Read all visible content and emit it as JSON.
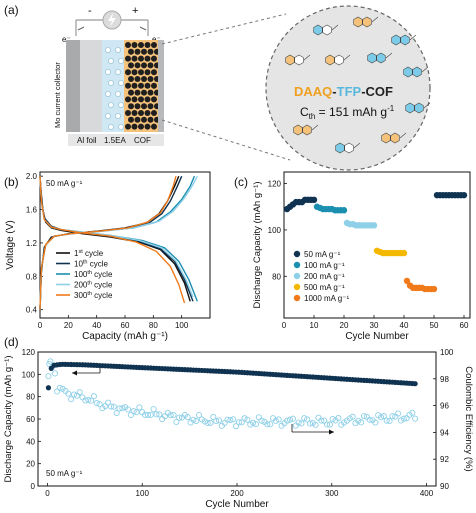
{
  "panels": {
    "a": "(a)",
    "b": "(b)",
    "c": "(c)",
    "d": "(d)"
  },
  "schematic": {
    "minus": "-",
    "plus": "+",
    "electron_left": "e⁻",
    "electron_right": "e⁻",
    "collector_label": "Mo current collector",
    "layers": [
      "Al foil",
      "1.5EA",
      "COF"
    ],
    "cof_name_parts": [
      "DAAQ",
      "-",
      "TFP",
      "-",
      "COF"
    ],
    "cof_name_colors": [
      "#f0a020",
      "#222222",
      "#5ab8dd",
      "#222222",
      "#222222"
    ],
    "capacity_text": "C",
    "capacity_sub": "th",
    "capacity_value": " = 151 mAh g",
    "capacity_sup": "-1"
  },
  "colors": {
    "black": "#111111",
    "navy": "#0f3350",
    "teal": "#1b8fb0",
    "light_blue": "#8fd0e8",
    "yellow": "#f5b800",
    "orange": "#f07a1a",
    "cof_orange": "#f0a020",
    "cof_blue": "#5ab8dd"
  },
  "chart_data": [
    {
      "panel": "b",
      "type": "line",
      "xlabel": "Capacity (mAh g⁻¹)",
      "ylabel": "Voltage (V)",
      "xlim": [
        0,
        120
      ],
      "ylim": [
        0.3,
        2.05
      ],
      "xticks": [
        0,
        20,
        40,
        60,
        80,
        100
      ],
      "yticks": [
        0.4,
        0.8,
        1.2,
        1.6,
        2.0
      ],
      "annotation": "50 mA g⁻¹",
      "series": [
        {
          "name": "1st cycle",
          "label_base": "1",
          "label_sup": "st",
          "label_tail": " cycle",
          "color": "#111111",
          "discharge": [
            [
              0,
              2.0
            ],
            [
              1,
              1.78
            ],
            [
              2,
              1.6
            ],
            [
              4,
              1.45
            ],
            [
              8,
              1.38
            ],
            [
              15,
              1.35
            ],
            [
              30,
              1.31
            ],
            [
              50,
              1.27
            ],
            [
              70,
              1.21
            ],
            [
              85,
              1.12
            ],
            [
              95,
              0.95
            ],
            [
              102,
              0.72
            ],
            [
              106,
              0.5
            ]
          ],
          "charge": [
            [
              0,
              0.4
            ],
            [
              1,
              0.85
            ],
            [
              3,
              1.15
            ],
            [
              8,
              1.27
            ],
            [
              20,
              1.31
            ],
            [
              40,
              1.34
            ],
            [
              60,
              1.38
            ],
            [
              75,
              1.44
            ],
            [
              84,
              1.55
            ],
            [
              90,
              1.7
            ],
            [
              95,
              1.88
            ],
            [
              98,
              2.0
            ]
          ]
        },
        {
          "name": "10th cycle",
          "label_base": "10",
          "label_sup": "th",
          "label_tail": " cycle",
          "color": "#0f3350",
          "discharge": [
            [
              0,
              2.0
            ],
            [
              1,
              1.72
            ],
            [
              3,
              1.5
            ],
            [
              8,
              1.4
            ],
            [
              15,
              1.36
            ],
            [
              30,
              1.32
            ],
            [
              50,
              1.28
            ],
            [
              70,
              1.22
            ],
            [
              85,
              1.13
            ],
            [
              95,
              0.98
            ],
            [
              102,
              0.76
            ],
            [
              108,
              0.5
            ]
          ],
          "charge": [
            [
              0,
              0.4
            ],
            [
              1,
              0.9
            ],
            [
              4,
              1.18
            ],
            [
              10,
              1.28
            ],
            [
              22,
              1.31
            ],
            [
              42,
              1.34
            ],
            [
              62,
              1.38
            ],
            [
              77,
              1.44
            ],
            [
              86,
              1.55
            ],
            [
              92,
              1.7
            ],
            [
              97,
              1.88
            ],
            [
              100,
              2.0
            ]
          ]
        },
        {
          "name": "100th cycle",
          "label_base": "100",
          "label_sup": "th",
          "label_tail": " cycle",
          "color": "#1b8fb0",
          "discharge": [
            [
              0,
              2.0
            ],
            [
              1,
              1.7
            ],
            [
              3,
              1.48
            ],
            [
              8,
              1.39
            ],
            [
              15,
              1.36
            ],
            [
              30,
              1.33
            ],
            [
              50,
              1.29
            ],
            [
              72,
              1.23
            ],
            [
              88,
              1.14
            ],
            [
              98,
              0.98
            ],
            [
              105,
              0.76
            ],
            [
              111,
              0.5
            ]
          ],
          "charge": [
            [
              0,
              0.4
            ],
            [
              1,
              0.9
            ],
            [
              4,
              1.18
            ],
            [
              10,
              1.28
            ],
            [
              22,
              1.31
            ],
            [
              44,
              1.34
            ],
            [
              66,
              1.38
            ],
            [
              82,
              1.45
            ],
            [
              92,
              1.57
            ],
            [
              100,
              1.72
            ],
            [
              106,
              1.88
            ],
            [
              109,
              2.0
            ]
          ]
        },
        {
          "name": "200th cycle",
          "label_base": "200",
          "label_sup": "th",
          "label_tail": " cycle",
          "color": "#8fd0e8",
          "discharge": [
            [
              0,
              2.0
            ],
            [
              1,
              1.7
            ],
            [
              3,
              1.48
            ],
            [
              8,
              1.39
            ],
            [
              15,
              1.36
            ],
            [
              30,
              1.33
            ],
            [
              50,
              1.29
            ],
            [
              70,
              1.23
            ],
            [
              86,
              1.14
            ],
            [
              96,
              0.98
            ],
            [
              103,
              0.76
            ],
            [
              108,
              0.55
            ]
          ],
          "charge": [
            [
              0,
              0.4
            ],
            [
              1,
              0.9
            ],
            [
              4,
              1.18
            ],
            [
              10,
              1.28
            ],
            [
              22,
              1.31
            ],
            [
              44,
              1.34
            ],
            [
              66,
              1.38
            ],
            [
              84,
              1.46
            ],
            [
              94,
              1.58
            ],
            [
              102,
              1.74
            ],
            [
              108,
              1.9
            ],
            [
              111,
              2.0
            ]
          ]
        },
        {
          "name": "300th cycle",
          "label_base": "300",
          "label_sup": "th",
          "label_tail": " cycle",
          "color": "#f07a1a",
          "discharge": [
            [
              0,
              2.0
            ],
            [
              1,
              1.7
            ],
            [
              3,
              1.48
            ],
            [
              8,
              1.39
            ],
            [
              15,
              1.36
            ],
            [
              30,
              1.32
            ],
            [
              50,
              1.28
            ],
            [
              68,
              1.21
            ],
            [
              82,
              1.1
            ],
            [
              92,
              0.92
            ],
            [
              98,
              0.7
            ],
            [
              102,
              0.48
            ]
          ],
          "charge": [
            [
              0,
              0.4
            ],
            [
              1,
              0.9
            ],
            [
              4,
              1.18
            ],
            [
              10,
              1.28
            ],
            [
              22,
              1.31
            ],
            [
              42,
              1.34
            ],
            [
              62,
              1.38
            ],
            [
              76,
              1.45
            ],
            [
              85,
              1.56
            ],
            [
              90,
              1.7
            ],
            [
              94,
              1.88
            ],
            [
              96,
              2.0
            ]
          ]
        }
      ]
    },
    {
      "panel": "c",
      "type": "scatter",
      "xlabel": "Cycle Number",
      "ylabel": "Discharge Capacity (mAh g⁻¹)",
      "xlim": [
        0,
        62
      ],
      "ylim": [
        62,
        125
      ],
      "xticks": [
        0,
        10,
        20,
        30,
        40,
        50,
        60
      ],
      "yticks": [
        80,
        100,
        120
      ],
      "series": [
        {
          "name": "50 mA g⁻¹",
          "color": "#0f3350",
          "x_start": 1,
          "values": [
            109,
            110,
            111,
            112,
            112,
            112,
            113,
            113,
            113,
            113
          ],
          "x2_start": 51,
          "values2": [
            115,
            115,
            115,
            115,
            115,
            115,
            115,
            115,
            115,
            115
          ]
        },
        {
          "name": "100 mA g⁻¹",
          "color": "#1b8fb0",
          "x_start": 11,
          "values": [
            110,
            109.5,
            109,
            109,
            109,
            109,
            108.5,
            108.5,
            108.5,
            108.5
          ]
        },
        {
          "name": "200 mA g⁻¹",
          "color": "#8fd0e8",
          "x_start": 21,
          "values": [
            103,
            102.5,
            102.5,
            102,
            102,
            102,
            102,
            102,
            102,
            102
          ]
        },
        {
          "name": "500 mA g⁻¹",
          "color": "#f5b800",
          "x_start": 31,
          "values": [
            91,
            90.5,
            90,
            90,
            90,
            90,
            90,
            90,
            90,
            90
          ]
        },
        {
          "name": "1000 mA g⁻¹",
          "color": "#f07a1a",
          "x_start": 41,
          "values": [
            78,
            76,
            75,
            75,
            75,
            75,
            74.5,
            74.5,
            74.5,
            74.5
          ]
        }
      ]
    },
    {
      "panel": "d",
      "type": "scatter",
      "xlabel": "Cycle Number",
      "ylabel": "Discharge Capacity (mAh g⁻¹)",
      "y2label": "Coulombic Efficiency (%)",
      "xlim": [
        -10,
        410
      ],
      "ylim": [
        0,
        120
      ],
      "y2lim": [
        90,
        100
      ],
      "xticks": [
        0,
        100,
        200,
        300,
        400
      ],
      "yticks": [
        0,
        20,
        40,
        60,
        80,
        100,
        120
      ],
      "y2ticks": [
        90,
        92,
        94,
        96,
        98,
        100
      ],
      "annotation": "50 mA g⁻¹",
      "capacity": {
        "color": "#0f3350",
        "x_max": 390,
        "start": 88,
        "points": [
          [
            1,
            88
          ],
          [
            3,
            104
          ],
          [
            6,
            108
          ],
          [
            15,
            109
          ],
          [
            40,
            108.5
          ],
          [
            100,
            106
          ],
          [
            200,
            102
          ],
          [
            300,
            96.5
          ],
          [
            390,
            91.5
          ]
        ]
      },
      "efficiency": {
        "color": "#8fd0e8",
        "x_max": 390,
        "first": [
          [
            1,
            98.2
          ],
          [
            2,
            99.1
          ],
          [
            3,
            99.3
          ],
          [
            5,
            98.9
          ],
          [
            8,
            98.4
          ]
        ],
        "points": [
          [
            10,
            97.4
          ],
          [
            20,
            96.9
          ],
          [
            40,
            96.6
          ],
          [
            60,
            96.0
          ],
          [
            80,
            95.7
          ],
          [
            100,
            95.5
          ],
          [
            140,
            95.1
          ],
          [
            180,
            94.8
          ],
          [
            220,
            94.8
          ],
          [
            260,
            94.8
          ],
          [
            300,
            94.8
          ],
          [
            340,
            95.0
          ],
          [
            390,
            95.2
          ]
        ]
      }
    }
  ]
}
